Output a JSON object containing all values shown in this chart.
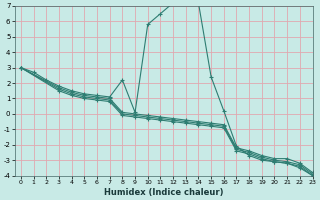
{
  "title": "",
  "xlabel": "Humidex (Indice chaleur)",
  "xlim": [
    -0.5,
    23
  ],
  "ylim": [
    -4,
    7
  ],
  "xticks": [
    0,
    1,
    2,
    3,
    4,
    5,
    6,
    7,
    8,
    9,
    10,
    11,
    12,
    13,
    14,
    15,
    16,
    17,
    18,
    19,
    20,
    21,
    22,
    23
  ],
  "yticks": [
    -4,
    -3,
    -2,
    -1,
    0,
    1,
    2,
    3,
    4,
    5,
    6,
    7
  ],
  "bg_color": "#c8eae6",
  "line_color": "#2e7d72",
  "grid_color": "#e0a8b0",
  "line1_x": [
    0,
    1,
    2,
    3,
    4,
    5,
    6,
    7,
    8,
    9,
    10,
    11,
    12,
    13,
    14,
    15,
    16,
    17,
    18,
    19,
    20,
    21,
    22,
    23
  ],
  "line1_y": [
    3.0,
    2.7,
    2.2,
    1.8,
    1.5,
    1.3,
    1.2,
    1.1,
    2.2,
    0.1,
    5.8,
    6.5,
    7.2,
    7.3,
    7.2,
    2.4,
    0.2,
    -2.1,
    -2.7,
    -3.0,
    -3.1,
    -3.2,
    -3.5,
    -4.0
  ],
  "line2_x": [
    0,
    3,
    4,
    5,
    6,
    7,
    8,
    9,
    10,
    11,
    12,
    13,
    14,
    15,
    16,
    17,
    18,
    19,
    20,
    21,
    22,
    23
  ],
  "line2_y": [
    3.0,
    1.7,
    1.4,
    1.2,
    1.1,
    1.0,
    0.1,
    0.0,
    -0.1,
    -0.2,
    -0.3,
    -0.4,
    -0.5,
    -0.6,
    -0.7,
    -2.2,
    -2.4,
    -2.7,
    -2.9,
    -2.9,
    -3.2,
    -3.8
  ],
  "line3_x": [
    0,
    3,
    4,
    5,
    6,
    7,
    8,
    9,
    10,
    11,
    12,
    13,
    14,
    15,
    16,
    17,
    18,
    19,
    20,
    21,
    22,
    23
  ],
  "line3_y": [
    3.0,
    1.6,
    1.3,
    1.1,
    1.0,
    0.9,
    0.0,
    -0.1,
    -0.2,
    -0.3,
    -0.4,
    -0.5,
    -0.6,
    -0.7,
    -0.8,
    -2.3,
    -2.5,
    -2.8,
    -3.0,
    -3.1,
    -3.3,
    -3.9
  ],
  "line4_x": [
    0,
    3,
    4,
    5,
    6,
    7,
    8,
    9,
    10,
    11,
    12,
    13,
    14,
    15,
    16,
    17,
    18,
    19,
    20,
    21,
    22,
    23
  ],
  "line4_y": [
    3.0,
    1.5,
    1.2,
    1.0,
    0.9,
    0.8,
    -0.1,
    -0.2,
    -0.3,
    -0.4,
    -0.5,
    -0.6,
    -0.7,
    -0.8,
    -0.9,
    -2.4,
    -2.6,
    -2.9,
    -3.1,
    -3.2,
    -3.4,
    -4.0
  ]
}
